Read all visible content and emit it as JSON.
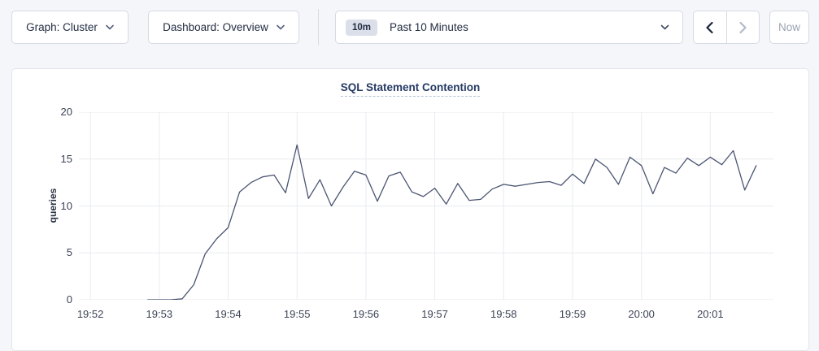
{
  "toolbar": {
    "graph_dropdown": {
      "label": "Graph: Cluster"
    },
    "dashboard_dropdown": {
      "label": "Dashboard: Overview"
    },
    "time_selector": {
      "badge": "10m",
      "label": "Past 10 Minutes"
    },
    "now_button": {
      "label": "Now"
    }
  },
  "chart": {
    "title": "SQL Statement Contention"
  },
  "colors": {
    "line": "#4a5571",
    "grid": "#e9ebef",
    "title_text": "#253a63",
    "enabled_arrow": "#1c2538",
    "disabled_arrow": "#b3bac7"
  },
  "chart_data": {
    "type": "line",
    "title": "SQL Statement Contention",
    "xlabel": "",
    "ylabel": "queries",
    "ylim": [
      0,
      20
    ],
    "yticks": [
      0,
      5,
      10,
      15,
      20
    ],
    "xticks": [
      "19:52",
      "19:53",
      "19:54",
      "19:55",
      "19:56",
      "19:57",
      "19:58",
      "19:59",
      "20:00",
      "20:01"
    ],
    "x_domain": [
      "19:51:50",
      "20:01:55"
    ],
    "x_start": "19:52:50",
    "x_step_seconds": 10,
    "grid": true,
    "legend_position": "none",
    "line_color": "#4a5571",
    "values": [
      0,
      0,
      0,
      0.1,
      1.6,
      4.9,
      6.5,
      7.7,
      11.5,
      12.5,
      13.1,
      13.3,
      11.4,
      16.5,
      10.8,
      12.8,
      10.0,
      12.0,
      13.7,
      13.3,
      10.5,
      13.2,
      13.6,
      11.5,
      11.0,
      11.9,
      10.2,
      12.4,
      10.6,
      10.7,
      11.8,
      12.3,
      12.1,
      12.3,
      12.5,
      12.6,
      12.2,
      13.4,
      12.4,
      15.0,
      14.1,
      12.3,
      15.2,
      14.3,
      11.3,
      14.1,
      13.5,
      15.1,
      14.3,
      15.2,
      14.4,
      15.9,
      11.7,
      14.3
    ]
  }
}
